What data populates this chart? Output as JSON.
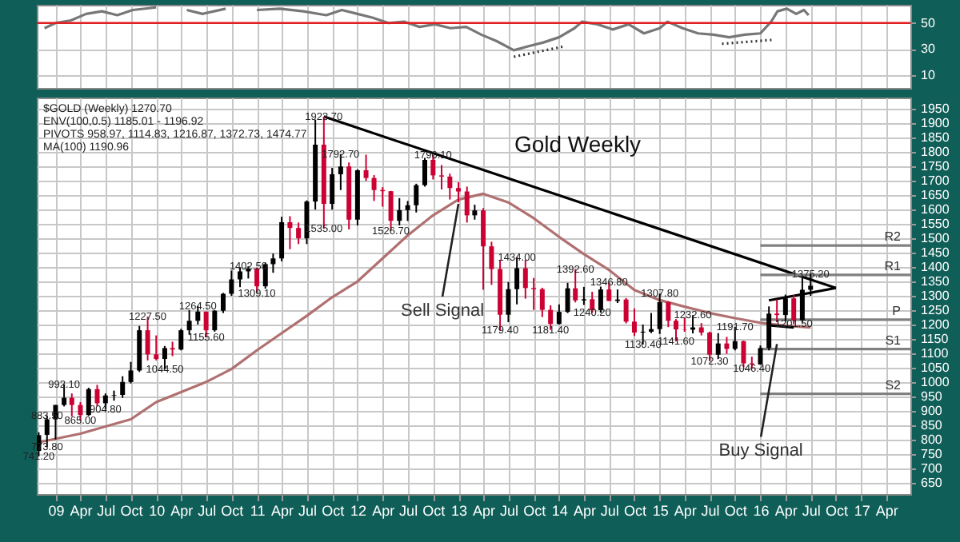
{
  "chart_data": [
    {
      "type": "line",
      "xlim": [
        "2008-10-25",
        "2017-06-28"
      ],
      "ylim": [
        0,
        64
      ],
      "yticks": [
        10,
        30,
        50
      ],
      "grid": true,
      "tick_labels": "y",
      "xticks": [
        {
          "value": "2009-01",
          "label": null
        },
        {
          "value": "2009-04",
          "label": null
        },
        {
          "value": "2009-07",
          "label": null
        },
        {
          "value": "2009-10",
          "label": null
        },
        {
          "value": "2010-01",
          "label": null
        },
        {
          "value": "2010-04",
          "label": null
        },
        {
          "value": "2010-07",
          "label": null
        },
        {
          "value": "2010-10",
          "label": null
        },
        {
          "value": "2011-01",
          "label": null
        },
        {
          "value": "2011-04",
          "label": null
        },
        {
          "value": "2011-07",
          "label": null
        },
        {
          "value": "2011-10",
          "label": null
        },
        {
          "value": "2012-01",
          "label": null
        },
        {
          "value": "2012-04",
          "label": null
        },
        {
          "value": "2012-07",
          "label": null
        },
        {
          "value": "2012-10",
          "label": null
        },
        {
          "value": "2013-01",
          "label": null
        },
        {
          "value": "2013-04",
          "label": null
        },
        {
          "value": "2013-07",
          "label": null
        },
        {
          "value": "2013-10",
          "label": null
        },
        {
          "value": "2014-01",
          "label": null
        },
        {
          "value": "2014-04",
          "label": null
        },
        {
          "value": "2014-07",
          "label": null
        },
        {
          "value": "2014-10",
          "label": null
        },
        {
          "value": "2015-01",
          "label": null
        },
        {
          "value": "2015-04",
          "label": null
        },
        {
          "value": "2015-07",
          "label": null
        },
        {
          "value": "2015-10",
          "label": null
        },
        {
          "value": "2016-01",
          "label": null
        },
        {
          "value": "2016-04",
          "label": null
        },
        {
          "value": "2016-07",
          "label": null
        },
        {
          "value": "2016-10",
          "label": null
        },
        {
          "value": "2017-01",
          "label": null
        },
        {
          "value": "2017-04",
          "label": null
        }
      ],
      "ref_lines": [
        {
          "axis": "y",
          "value": 50,
          "color": "#e02020"
        }
      ],
      "series": [
        {
          "type": "line",
          "color": "#777777",
          "x": [
            "2008-11-22",
            "2009-01-01",
            "2009-02-26",
            "2009-04-22",
            "2009-06-18",
            "2009-08-13",
            "2009-10-08",
            "2010-01-01",
            "2010-02-26",
            "2010-04-22",
            "2010-06-18",
            "2010-09-10",
            "2010-11-05",
            "2011-01-01",
            "2011-03-25",
            "2011-06-18",
            "2011-09-10",
            "2011-11-05",
            "2012-01-01",
            "2012-02-26",
            "2012-04-22",
            "2012-06-18",
            "2012-08-13",
            "2012-10-08",
            "2012-12-03",
            "2013-01-29",
            "2013-03-25",
            "2013-05-20",
            "2013-07-21",
            "2013-09-10",
            "2013-11-05",
            "2014-01-01",
            "2014-02-26",
            "2014-03-25",
            "2014-05-20",
            "2014-07-15",
            "2014-09-10",
            "2014-11-05",
            "2015-01-01",
            "2015-01-29",
            "2015-03-25",
            "2015-05-20",
            "2015-07-15",
            "2015-09-10",
            "2015-11-05",
            "2016-01-01",
            "2016-02-09",
            "2016-03-03",
            "2016-04-06",
            "2016-05-10",
            "2016-06-07",
            "2016-06-24"
          ],
          "values": [
            46,
            50,
            52,
            57,
            59,
            56,
            60,
            62,
            null,
            60,
            57,
            61,
            null,
            60,
            61,
            59,
            56,
            60,
            57,
            54,
            50,
            51,
            47,
            49,
            46,
            47,
            41,
            36,
            29,
            32,
            35,
            39,
            46,
            51,
            49,
            45,
            49,
            42,
            46,
            51,
            46,
            42,
            41,
            39,
            41,
            42,
            51,
            59,
            61,
            57,
            60,
            56
          ]
        },
        {
          "type": "line",
          "color": "#333333",
          "line_style": "dotted",
          "x": [
            "2013-07-21",
            "2014-01-20"
          ],
          "values": [
            24,
            32
          ]
        },
        {
          "type": "line",
          "color": "#333333",
          "line_style": "dotted",
          "x": [
            "2015-08-15",
            "2016-02-15"
          ],
          "values": [
            34,
            37
          ]
        }
      ]
    },
    {
      "type": "candlestick",
      "title": "Gold Weekly",
      "xlim": [
        "2008-10-25",
        "2017-06-28"
      ],
      "ylim": [
        610,
        1990
      ],
      "grid": true,
      "yticks": [
        650,
        700,
        750,
        800,
        850,
        900,
        950,
        1000,
        1050,
        1100,
        1150,
        1200,
        1250,
        1300,
        1350,
        1400,
        1450,
        1500,
        1550,
        1600,
        1650,
        1700,
        1750,
        1800,
        1850,
        1900,
        1950
      ],
      "xticks": [
        {
          "value": "2009-01",
          "label": "09"
        },
        {
          "value": "2009-04",
          "label": "Apr"
        },
        {
          "value": "2009-07",
          "label": "Jul"
        },
        {
          "value": "2009-10",
          "label": "Oct"
        },
        {
          "value": "2010-01",
          "label": "10"
        },
        {
          "value": "2010-04",
          "label": "Apr"
        },
        {
          "value": "2010-07",
          "label": "Jul"
        },
        {
          "value": "2010-10",
          "label": "Oct"
        },
        {
          "value": "2011-01",
          "label": "11"
        },
        {
          "value": "2011-04",
          "label": "Apr"
        },
        {
          "value": "2011-07",
          "label": "Jul"
        },
        {
          "value": "2011-10",
          "label": "Oct"
        },
        {
          "value": "2012-01",
          "label": "12"
        },
        {
          "value": "2012-04",
          "label": "Apr"
        },
        {
          "value": "2012-07",
          "label": "Jul"
        },
        {
          "value": "2012-10",
          "label": "Oct"
        },
        {
          "value": "2013-01",
          "label": "13"
        },
        {
          "value": "2013-04",
          "label": "Apr"
        },
        {
          "value": "2013-07",
          "label": "Jul"
        },
        {
          "value": "2013-10",
          "label": "Oct"
        },
        {
          "value": "2014-01",
          "label": "14"
        },
        {
          "value": "2014-04",
          "label": "Apr"
        },
        {
          "value": "2014-07",
          "label": "Jul"
        },
        {
          "value": "2014-10",
          "label": "Oct"
        },
        {
          "value": "2015-01",
          "label": "15"
        },
        {
          "value": "2015-04",
          "label": "Apr"
        },
        {
          "value": "2015-07",
          "label": "Jul"
        },
        {
          "value": "2015-10",
          "label": "Oct"
        },
        {
          "value": "2016-01",
          "label": "16"
        },
        {
          "value": "2016-04",
          "label": "Apr"
        },
        {
          "value": "2016-07",
          "label": "Jul"
        },
        {
          "value": "2016-10",
          "label": "Oct"
        },
        {
          "value": "2017-01",
          "label": "17"
        },
        {
          "value": "2017-04",
          "label": "Apr"
        }
      ],
      "x": [
        "2008-11",
        "2008-12",
        "2009-01",
        "2009-02",
        "2009-03",
        "2009-04",
        "2009-05",
        "2009-06",
        "2009-07",
        "2009-08",
        "2009-09",
        "2009-10",
        "2009-11",
        "2009-12",
        "2010-01",
        "2010-02",
        "2010-03",
        "2010-04",
        "2010-05",
        "2010-06",
        "2010-07",
        "2010-08",
        "2010-09",
        "2010-10",
        "2010-11",
        "2010-12",
        "2011-01",
        "2011-02",
        "2011-03",
        "2011-04",
        "2011-05",
        "2011-06",
        "2011-07",
        "2011-08",
        "2011-09",
        "2011-10",
        "2011-11",
        "2011-12",
        "2012-01",
        "2012-02",
        "2012-03",
        "2012-04",
        "2012-05",
        "2012-06",
        "2012-07",
        "2012-08",
        "2012-09",
        "2012-10",
        "2012-11",
        "2012-12",
        "2013-01",
        "2013-02",
        "2013-03",
        "2013-04",
        "2013-05",
        "2013-06",
        "2013-07",
        "2013-08",
        "2013-09",
        "2013-10",
        "2013-11",
        "2013-12",
        "2014-01",
        "2014-02",
        "2014-03",
        "2014-04",
        "2014-05",
        "2014-06",
        "2014-07",
        "2014-08",
        "2014-09",
        "2014-10",
        "2014-11",
        "2014-12",
        "2015-01",
        "2015-02",
        "2015-03",
        "2015-04",
        "2015-05",
        "2015-06",
        "2015-07",
        "2015-08",
        "2015-09",
        "2015-10",
        "2015-11",
        "2015-12",
        "2016-01",
        "2016-02",
        "2016-03",
        "2016-04",
        "2016-05",
        "2016-06",
        "2016-07"
      ],
      "ohlc": [
        [
          760,
          825,
          741.2,
          815
        ],
        [
          816,
          883.5,
          773.8,
          870
        ],
        [
          870,
          920,
          800,
          920
        ],
        [
          920,
          992.1,
          915,
          945
        ],
        [
          945,
          960,
          880,
          920
        ],
        [
          920,
          930,
          865,
          885
        ],
        [
          885,
          980,
          882,
          975
        ],
        [
          975,
          990,
          915,
          926
        ],
        [
          926,
          960,
          904.8,
          953
        ],
        [
          953,
          970,
          935,
          955
        ],
        [
          955,
          1020,
          945,
          1000
        ],
        [
          1000,
          1070,
          995,
          1040
        ],
        [
          1040,
          1195,
          1035,
          1180
        ],
        [
          1180,
          1227.5,
          1075,
          1096
        ],
        [
          1096,
          1162,
          1075,
          1080
        ],
        [
          1080,
          1125,
          1044.5,
          1118
        ],
        [
          1118,
          1140,
          1090,
          1113
        ],
        [
          1113,
          1185,
          1110,
          1180
        ],
        [
          1180,
          1250,
          1165,
          1213
        ],
        [
          1213,
          1264.5,
          1200,
          1245
        ],
        [
          1245,
          1245,
          1155.6,
          1180
        ],
        [
          1180,
          1250,
          1175,
          1248
        ],
        [
          1248,
          1310,
          1240,
          1307
        ],
        [
          1307,
          1388,
          1300,
          1357
        ],
        [
          1357,
          1398,
          1330,
          1385
        ],
        [
          1385,
          1402.5,
          1360,
          1395
        ],
        [
          1395,
          1398,
          1309.1,
          1333
        ],
        [
          1333,
          1415,
          1325,
          1410
        ],
        [
          1410,
          1447,
          1380,
          1430
        ],
        [
          1430,
          1575,
          1420,
          1556
        ],
        [
          1556,
          1577,
          1462,
          1536
        ],
        [
          1536,
          1555,
          1480,
          1500
        ],
        [
          1500,
          1632,
          1480,
          1628
        ],
        [
          1628,
          1913,
          1600,
          1826
        ],
        [
          1826,
          1923.7,
          1535,
          1620
        ],
        [
          1620,
          1745,
          1600,
          1723
        ],
        [
          1723,
          1792.7,
          1668,
          1750
        ],
        [
          1750,
          1764,
          1531,
          1565
        ],
        [
          1565,
          1740,
          1545,
          1737
        ],
        [
          1737,
          1791,
          1700,
          1710
        ],
        [
          1710,
          1720,
          1630,
          1668
        ],
        [
          1668,
          1678,
          1610,
          1664
        ],
        [
          1664,
          1665,
          1526.7,
          1561
        ],
        [
          1561,
          1640,
          1545,
          1598
        ],
        [
          1598,
          1630,
          1560,
          1615
        ],
        [
          1615,
          1690,
          1590,
          1685
        ],
        [
          1685,
          1780,
          1680,
          1773
        ],
        [
          1773,
          1790.1,
          1705,
          1719
        ],
        [
          1719,
          1755,
          1670,
          1715
        ],
        [
          1715,
          1725,
          1635,
          1675
        ],
        [
          1675,
          1695,
          1625,
          1663
        ],
        [
          1663,
          1680,
          1555,
          1580
        ],
        [
          1580,
          1617,
          1565,
          1597
        ],
        [
          1597,
          1605,
          1321,
          1472
        ],
        [
          1472,
          1488,
          1338,
          1393
        ],
        [
          1393,
          1424,
          1179.4,
          1234
        ],
        [
          1234,
          1348,
          1208,
          1323
        ],
        [
          1323,
          1434,
          1270,
          1396
        ],
        [
          1396,
          1425,
          1290,
          1327
        ],
        [
          1327,
          1362,
          1251,
          1323
        ],
        [
          1323,
          1328,
          1226,
          1251
        ],
        [
          1251,
          1267,
          1181.4,
          1202
        ],
        [
          1202,
          1270,
          1200,
          1244
        ],
        [
          1244,
          1345,
          1240,
          1326
        ],
        [
          1326,
          1392.6,
          1277,
          1284
        ],
        [
          1284,
          1331,
          1268,
          1288
        ],
        [
          1288,
          1314,
          1240.2,
          1250
        ],
        [
          1250,
          1332,
          1241,
          1322
        ],
        [
          1322,
          1346.8,
          1282,
          1282
        ],
        [
          1282,
          1322,
          1275,
          1287
        ],
        [
          1287,
          1292,
          1204,
          1210
        ],
        [
          1210,
          1256,
          1160,
          1172
        ],
        [
          1172,
          1200,
          1130.4,
          1175
        ],
        [
          1175,
          1240,
          1170,
          1184
        ],
        [
          1184,
          1307.8,
          1167,
          1278
        ],
        [
          1278,
          1280,
          1191,
          1213
        ],
        [
          1213,
          1219,
          1141.6,
          1183
        ],
        [
          1183,
          1224,
          1175,
          1182
        ],
        [
          1182,
          1232.6,
          1169,
          1190
        ],
        [
          1190,
          1205,
          1162,
          1172
        ],
        [
          1172,
          1175,
          1072.3,
          1095
        ],
        [
          1095,
          1170,
          1080,
          1134
        ],
        [
          1134,
          1157,
          1098,
          1115
        ],
        [
          1115,
          1191.7,
          1110,
          1142
        ],
        [
          1142,
          1144,
          1052,
          1065
        ],
        [
          1065,
          1088,
          1046.4,
          1061
        ],
        [
          1061,
          1127,
          1060,
          1118
        ],
        [
          1118,
          1263,
          1110,
          1238
        ],
        [
          1238,
          1287,
          1208,
          1233
        ],
        [
          1233,
          1304,
          1211,
          1291
        ],
        [
          1291,
          1303,
          1201.5,
          1215
        ],
        [
          1215,
          1362,
          1207,
          1321
        ],
        [
          1321,
          1375.2,
          1300,
          1335
        ]
      ],
      "colors": [
        "#000000",
        "#000000",
        "#000000",
        "#000000",
        "#cc0033",
        "#cc0033",
        "#000000",
        "#cc0033",
        "#000000",
        "#000000",
        "#000000",
        "#000000",
        "#000000",
        "#cc0033",
        "#cc0033",
        "#000000",
        "#cc0033",
        "#000000",
        "#000000",
        "#000000",
        "#cc0033",
        "#000000",
        "#000000",
        "#000000",
        "#000000",
        "#000000",
        "#cc0033",
        "#000000",
        "#000000",
        "#000000",
        "#cc0033",
        "#cc0033",
        "#000000",
        "#000000",
        "#cc0033",
        "#000000",
        "#000000",
        "#cc0033",
        "#000000",
        "#cc0033",
        "#cc0033",
        "#cc0033",
        "#cc0033",
        "#000000",
        "#000000",
        "#000000",
        "#000000",
        "#cc0033",
        "#cc0033",
        "#cc0033",
        "#cc0033",
        "#cc0033",
        "#000000",
        "#cc0033",
        "#cc0033",
        "#cc0033",
        "#000000",
        "#000000",
        "#cc0033",
        "#cc0033",
        "#cc0033",
        "#cc0033",
        "#000000",
        "#000000",
        "#cc0033",
        "#000000",
        "#cc0033",
        "#000000",
        "#cc0033",
        "#000000",
        "#cc0033",
        "#cc0033",
        "#000000",
        "#000000",
        "#000000",
        "#cc0033",
        "#cc0033",
        "#cc0033",
        "#000000",
        "#cc0033",
        "#cc0033",
        "#000000",
        "#cc0033",
        "#000000",
        "#cc0033",
        "#cc0033",
        "#000000",
        "#000000",
        "#cc0033",
        "#000000",
        "#cc0033",
        "#000000",
        "#000000"
      ],
      "series": [
        {
          "type": "line",
          "color": "#b07070",
          "x": [
            "2008-11",
            "2009-04",
            "2009-07",
            "2009-10",
            "2010-01",
            "2010-04",
            "2010-07",
            "2010-10",
            "2011-01",
            "2011-04",
            "2011-07",
            "2011-10",
            "2012-01",
            "2012-04",
            "2012-07",
            "2012-10",
            "2013-01",
            "2013-04",
            "2013-07",
            "2013-10",
            "2014-01",
            "2014-04",
            "2014-07",
            "2014-10",
            "2015-01",
            "2015-04",
            "2015-07",
            "2015-10",
            "2016-01",
            "2016-04",
            "2016-07"
          ],
          "values": [
            790,
            820,
            845,
            870,
            930,
            965,
            1000,
            1045,
            1110,
            1170,
            1230,
            1295,
            1350,
            1430,
            1510,
            1580,
            1635,
            1655,
            1625,
            1570,
            1505,
            1445,
            1390,
            1320,
            1285,
            1262,
            1240,
            1222,
            1206,
            1196,
            1190
          ]
        },
        {
          "type": "line",
          "color": "#000000",
          "x": [
            "2011-09",
            "2016-10"
          ],
          "values": [
            1923.7,
            1327
          ]
        },
        {
          "type": "line",
          "color": "#000000",
          "x": [
            "2016-02",
            "2016-10"
          ],
          "values": [
            1284,
            1327
          ]
        },
        {
          "type": "line",
          "color": "#000000",
          "x": [
            "2016-02",
            "2016-05"
          ],
          "values": [
            1197,
            1190
          ]
        },
        {
          "type": "line",
          "name": "R2",
          "color": "#808080",
          "x": [
            "2016-01",
            "2017-06-28"
          ],
          "values": [
            1474.77,
            1474.77
          ]
        },
        {
          "type": "line",
          "name": "R1",
          "color": "#808080",
          "x": [
            "2016-01",
            "2017-06-28"
          ],
          "values": [
            1372.73,
            1372.73
          ]
        },
        {
          "type": "line",
          "name": "P",
          "color": "#808080",
          "x": [
            "2016-01",
            "2017-06-28"
          ],
          "values": [
            1216.87,
            1216.87
          ]
        },
        {
          "type": "line",
          "name": "S1",
          "color": "#808080",
          "x": [
            "2016-01",
            "2017-06-28"
          ],
          "values": [
            1114.83,
            1114.83
          ]
        },
        {
          "type": "line",
          "name": "S2",
          "color": "#808080",
          "x": [
            "2016-01",
            "2017-06-28"
          ],
          "values": [
            958.97,
            958.97
          ]
        }
      ],
      "annotations": [
        "$GOLD (Weekly) 1270.70",
        "ENV(100,0.5) 1185.01 - 1196.92",
        "PIVOTS 958.97, 1114.83, 1216.87, 1372.73, 1474.77",
        "MA(100) 1190.96",
        {
          "text": "1923.70",
          "x": "2011-09",
          "y": 1923.7
        },
        {
          "text": "1792.70",
          "x": "2011-11",
          "y": 1792.7
        },
        {
          "text": "1790.10",
          "x": "2012-10",
          "y": 1790.1
        },
        {
          "text": "1535.00",
          "x": "2011-09",
          "y": 1535
        },
        {
          "text": "1526.70",
          "x": "2012-05",
          "y": 1526.7
        },
        {
          "text": "1402.50",
          "x": "2010-12",
          "y": 1402.5
        },
        {
          "text": "1309.10",
          "x": "2011-01",
          "y": 1309.1
        },
        {
          "text": "1264.50",
          "x": "2010-06",
          "y": 1264.5
        },
        {
          "text": "1155.60",
          "x": "2010-07",
          "y": 1155.6
        },
        {
          "text": "1227.50",
          "x": "2009-12",
          "y": 1227.5
        },
        {
          "text": "1044.50",
          "x": "2010-02",
          "y": 1044.5
        },
        {
          "text": "992.10",
          "x": "2009-02",
          "y": 992.1
        },
        {
          "text": "865.00",
          "x": "2009-04",
          "y": 865
        },
        {
          "text": "904.80",
          "x": "2009-07",
          "y": 904.8
        },
        {
          "text": "883.50",
          "x": "2008-12",
          "y": 883.5
        },
        {
          "text": "773.80",
          "x": "2008-12",
          "y": 773.8
        },
        {
          "text": "741.20",
          "x": "2008-11",
          "y": 741.2
        },
        {
          "text": "1434.00",
          "x": "2013-08",
          "y": 1434
        },
        {
          "text": "1179.40",
          "x": "2013-06",
          "y": 1179.4
        },
        {
          "text": "1181.40",
          "x": "2013-12",
          "y": 1181.4
        },
        {
          "text": "1392.60",
          "x": "2014-03",
          "y": 1392.6
        },
        {
          "text": "1346.80",
          "x": "2014-07",
          "y": 1346.8
        },
        {
          "text": "1240.20",
          "x": "2014-05",
          "y": 1240.2
        },
        {
          "text": "1130.40",
          "x": "2014-11",
          "y": 1130.4
        },
        {
          "text": "1307.80",
          "x": "2015-01",
          "y": 1307.8
        },
        {
          "text": "1141.60",
          "x": "2015-03",
          "y": 1141.6
        },
        {
          "text": "1232.60",
          "x": "2015-05",
          "y": 1232.6
        },
        {
          "text": "1072.30",
          "x": "2015-07",
          "y": 1072.3
        },
        {
          "text": "1191.70",
          "x": "2015-10",
          "y": 1191.7
        },
        {
          "text": "1046.40",
          "x": "2015-12",
          "y": 1046.4
        },
        {
          "text": "1201.50",
          "x": "2016-05",
          "y": 1201.5
        },
        {
          "text": "1375.20",
          "x": "2016-07",
          "y": 1375.2
        },
        {
          "text": "Sell Signal",
          "x": "2013-01",
          "y": 1620
        },
        {
          "text": "Buy Signal",
          "x": "2016-03",
          "y": 1132
        }
      ]
    }
  ]
}
